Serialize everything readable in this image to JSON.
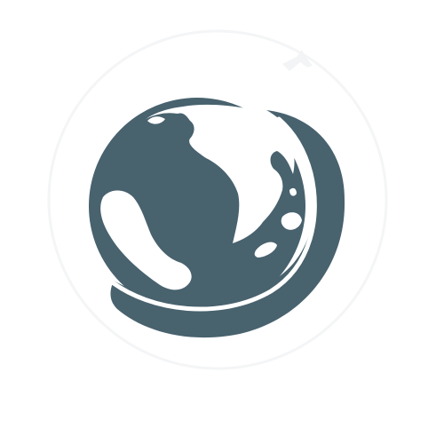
{
  "logo": {
    "icon": "globe-icon",
    "arc_icon": "orbit-arc-icon",
    "plane_icon": "airplane-icon",
    "colors": {
      "globe": "#48626e",
      "land": "#ffffff",
      "background": "#ffffff",
      "faint_ring": "#f4f5f6"
    }
  }
}
